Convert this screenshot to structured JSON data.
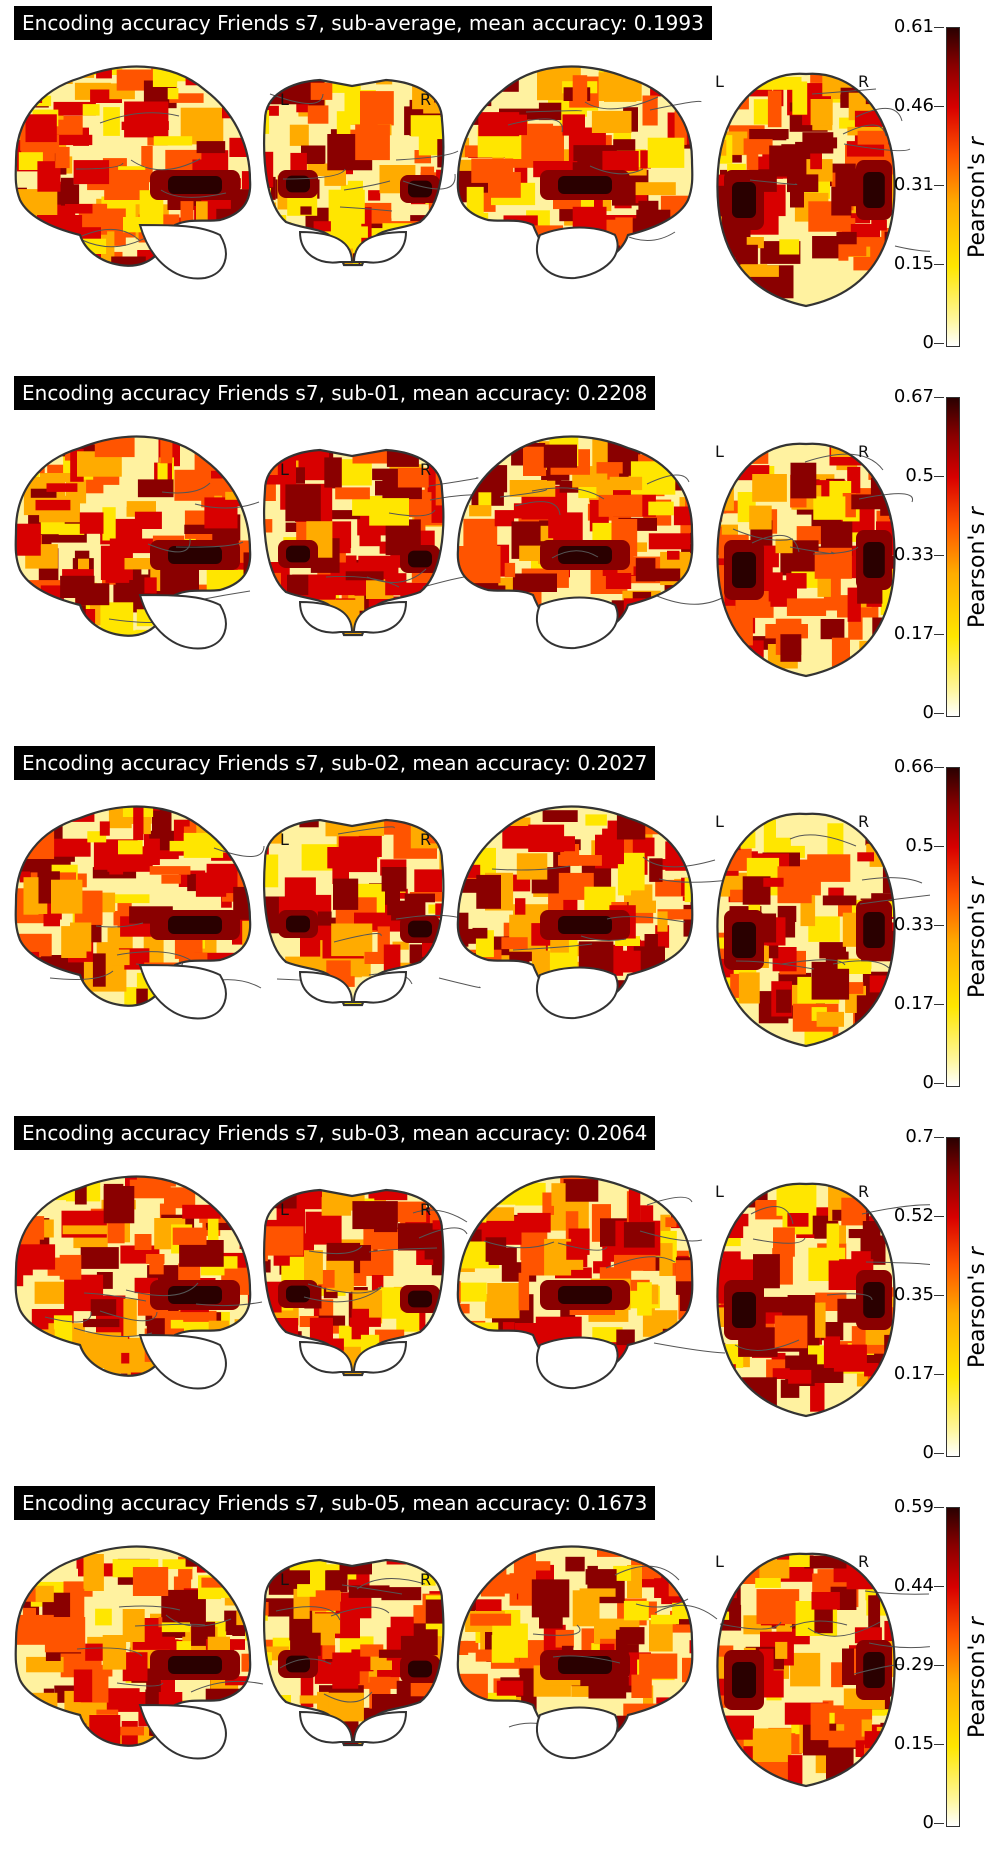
{
  "panels": [
    {
      "title": "Encoding accuracy Friends s7, sub-average, mean accuracy: 0.1993",
      "ticks": [
        "0.61",
        "0.46",
        "0.31",
        "0.15",
        "0"
      ]
    },
    {
      "title": "Encoding accuracy Friends s7, sub-01, mean accuracy: 0.2208",
      "ticks": [
        "0.67",
        "0.5",
        "0.33",
        "0.17",
        "0"
      ]
    },
    {
      "title": "Encoding accuracy Friends s7, sub-02, mean accuracy: 0.2027",
      "ticks": [
        "0.66",
        "0.5",
        "0.33",
        "0.17",
        "0"
      ]
    },
    {
      "title": "Encoding accuracy Friends s7, sub-03, mean accuracy: 0.2064",
      "ticks": [
        "0.7",
        "0.52",
        "0.35",
        "0.17",
        "0"
      ]
    },
    {
      "title": "Encoding accuracy Friends s7, sub-05, mean accuracy: 0.1673",
      "ticks": [
        "0.59",
        "0.44",
        "0.29",
        "0.15",
        "0"
      ]
    }
  ],
  "hemi_labels": {
    "left": "L",
    "right": "R"
  },
  "colorbar_label": "Pearson's r",
  "colormap": [
    "#ffffff",
    "#fff6a0",
    "#ffe600",
    "#ffab00",
    "#ff5400",
    "#d80000",
    "#8a0000",
    "#2a0000"
  ]
}
